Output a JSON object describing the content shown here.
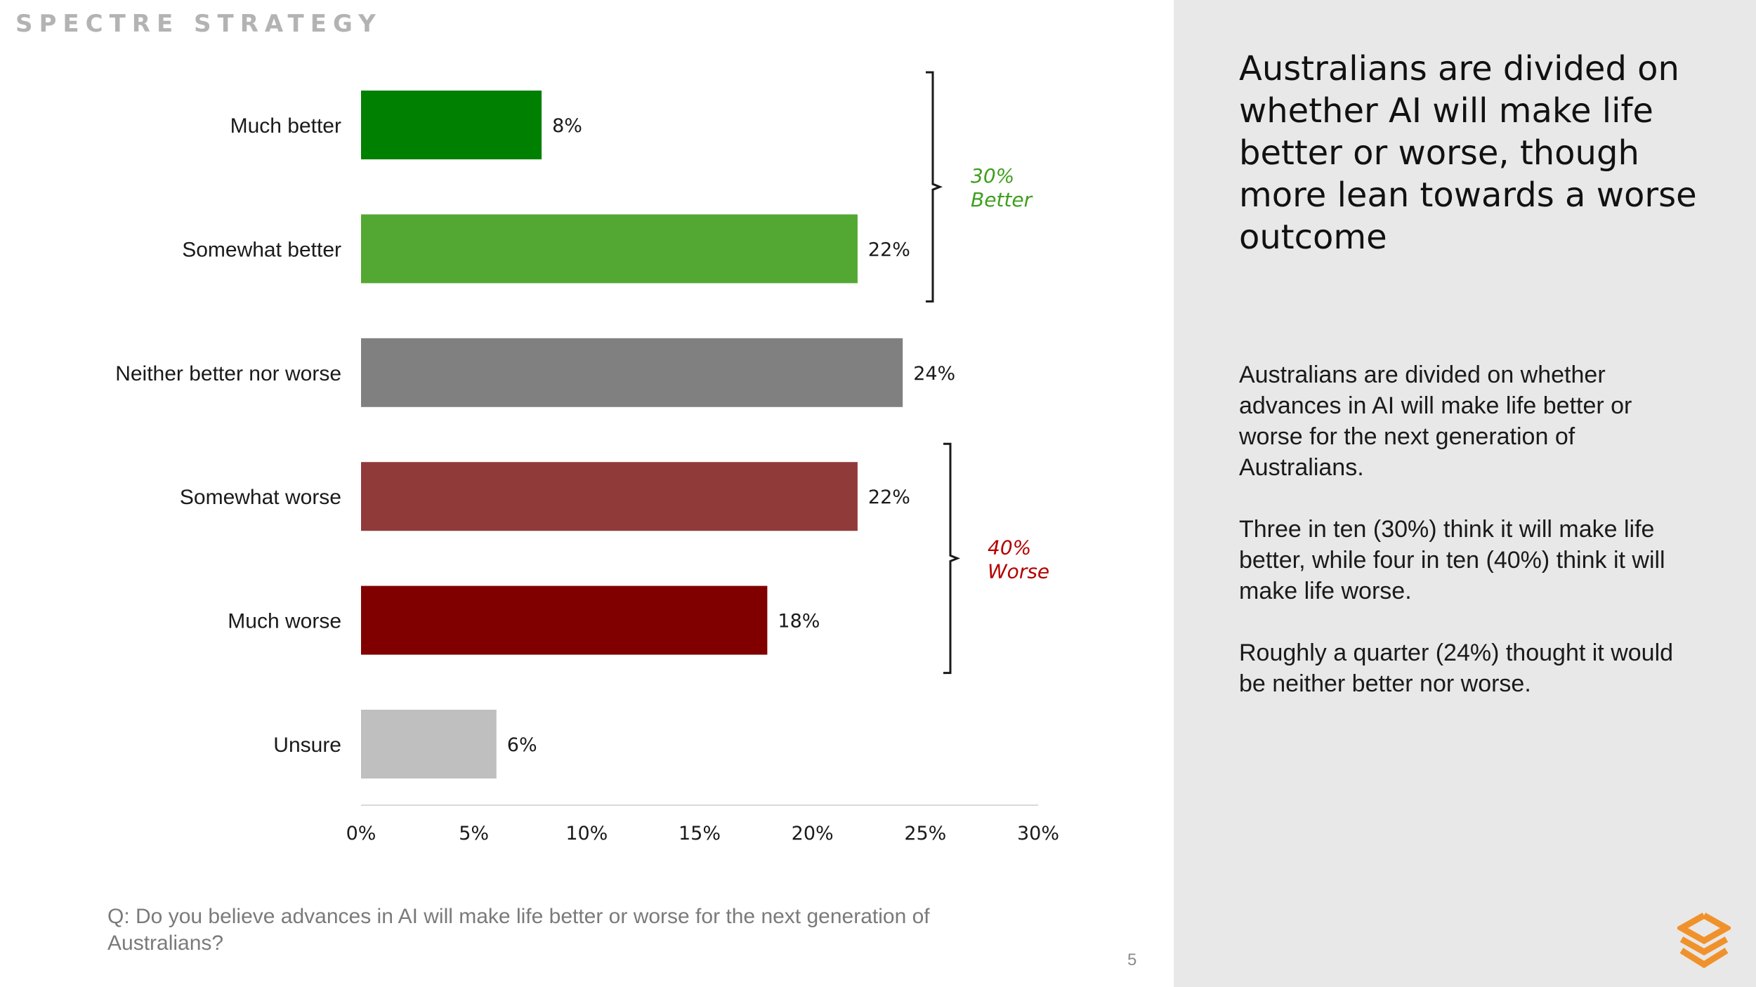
{
  "brand": "SPECTRE STRATEGY",
  "chart_data": {
    "type": "bar",
    "orientation": "horizontal",
    "categories": [
      "Much better",
      "Somewhat better",
      "Neither better nor worse",
      "Somewhat worse",
      "Much worse",
      "Unsure"
    ],
    "values": [
      8,
      22,
      24,
      22,
      18,
      6
    ],
    "value_labels": [
      "8%",
      "22%",
      "24%",
      "22%",
      "18%",
      "6%"
    ],
    "colors": [
      "#008000",
      "#52a832",
      "#808080",
      "#913a3a",
      "#800000",
      "#bfbfbf"
    ],
    "xlim": [
      0,
      30
    ],
    "xticks": [
      0,
      5,
      10,
      15,
      20,
      25,
      30
    ],
    "xtick_labels": [
      "0%",
      "5%",
      "10%",
      "15%",
      "20%",
      "25%",
      "30%"
    ],
    "groups": [
      {
        "pct": "30%",
        "label": "Better",
        "from": 0,
        "to": 1,
        "color": "#3f9f1f"
      },
      {
        "pct": "40%",
        "label": "Worse",
        "from": 3,
        "to": 4,
        "color": "#b50000"
      }
    ]
  },
  "question": "Q: Do you believe advances in AI will make life better or worse for the next generation of Australians?",
  "page_number": "5",
  "sidebar": {
    "headline": "Australians are divided on whether AI will make life better or worse, though more lean towards a worse outcome",
    "paragraphs": [
      "Australians are divided on whether advances in AI will make life better or worse for the next generation of Australians.",
      "Three in ten (30%) think it will make life better, while four in ten (40%) think it will make life worse.",
      "Roughly a quarter (24%) thought it would be neither better nor worse."
    ]
  },
  "logo_icon": "spectre-logo-icon",
  "colors": {
    "logo": "#f0922b",
    "panel": "#e8e8e8",
    "brand": "#b3b3b3"
  }
}
